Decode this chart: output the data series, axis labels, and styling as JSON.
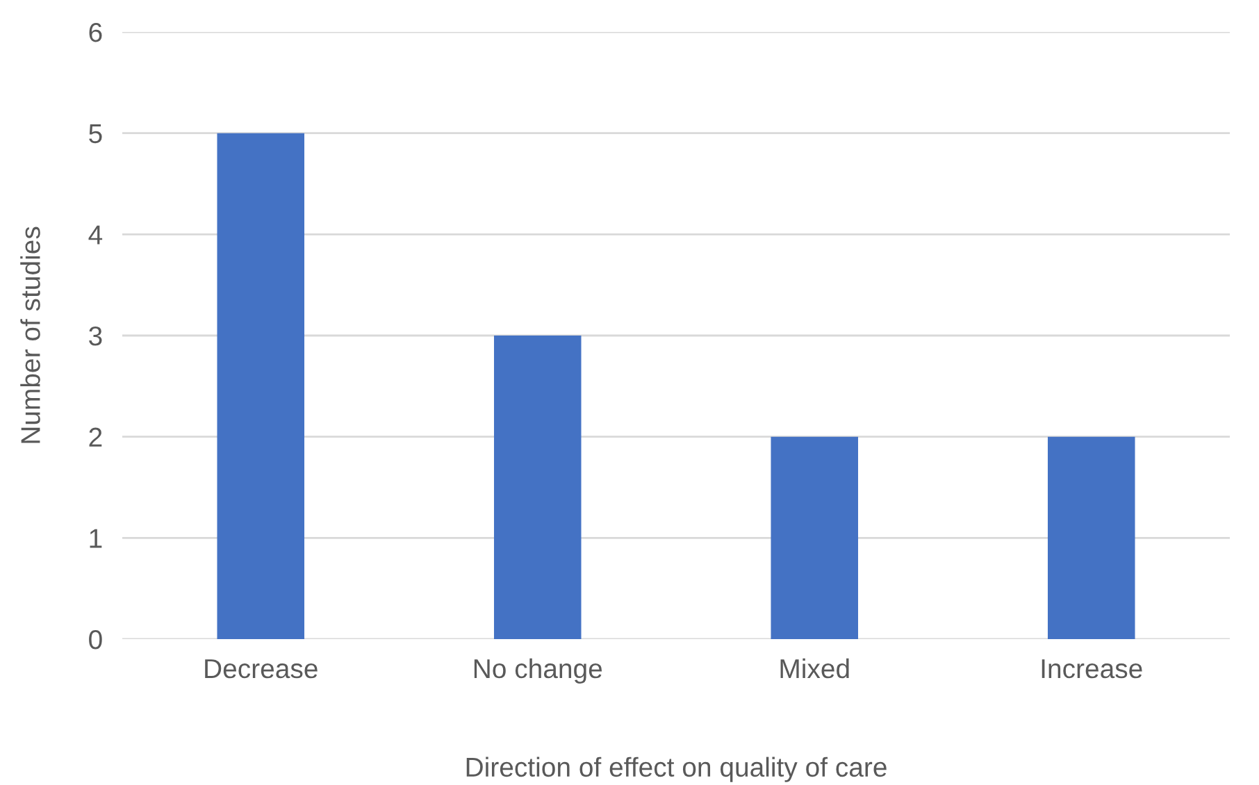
{
  "chart_data": {
    "type": "bar",
    "xlabel": "Direction of effect on quality of care",
    "ylabel": "Number of studies",
    "categories": [
      "Decrease",
      "No change",
      "Mixed",
      "Increase"
    ],
    "values": [
      5,
      3,
      2,
      2
    ],
    "color": "#4472c4",
    "ylim": [
      0,
      6
    ],
    "yticks": [
      0,
      1,
      2,
      3,
      4,
      5,
      6
    ],
    "grid": "y",
    "legend": false
  }
}
